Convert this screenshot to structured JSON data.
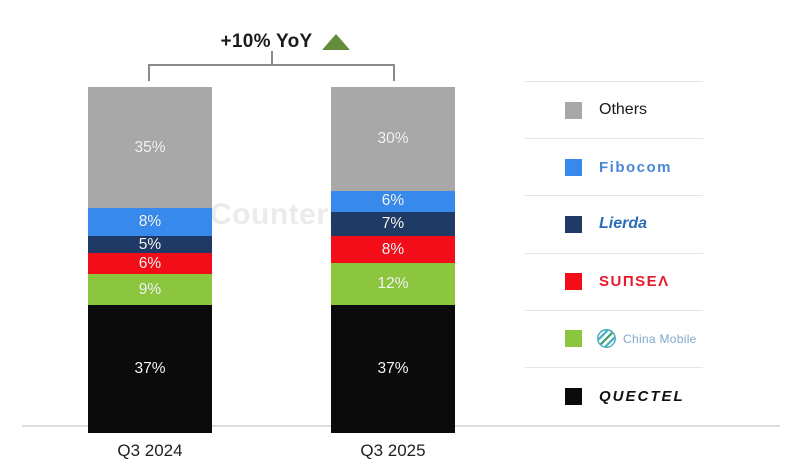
{
  "watermark": "Counterpoint",
  "chart_data": {
    "type": "bar",
    "subtype": "stacked-100-percent",
    "annotation": "+10% YoY",
    "annotation_arrow": "up",
    "annotation_arrow_color": "#648c3c",
    "categories": [
      "Q3 2024",
      "Q3 2025"
    ],
    "series": [
      {
        "name": "Others",
        "color": "#a8a8a8",
        "values": [
          35,
          30
        ]
      },
      {
        "name": "Fibocom",
        "color": "#3789ec",
        "values": [
          8,
          6
        ]
      },
      {
        "name": "Lierda",
        "color": "#1f3a64",
        "values": [
          5,
          7
        ]
      },
      {
        "name": "Sunsea",
        "color": "#f20d18",
        "values": [
          6,
          8
        ]
      },
      {
        "name": "China Mobile",
        "color": "#8cc63e",
        "values": [
          9,
          12
        ]
      },
      {
        "name": "Quectel",
        "color": "#0b0b0b",
        "values": [
          37,
          37
        ]
      }
    ],
    "value_suffix": "%",
    "ylim": [
      0,
      100
    ],
    "grid": false,
    "legend_position": "right"
  },
  "legend": {
    "items": [
      {
        "label": "Others",
        "display": "Others",
        "color": "#a8a8a8",
        "style": "plain",
        "icon": null
      },
      {
        "label": "Fibocom",
        "display": "Fibocom",
        "color": "#3789ec",
        "style": "fibocom",
        "icon": null
      },
      {
        "label": "Lierda",
        "display": "Lierda",
        "color": "#1f3a64",
        "style": "lierda",
        "icon": null
      },
      {
        "label": "Sunsea",
        "display": "SUΠSEΛ",
        "color": "#f20d18",
        "style": "sunsea",
        "icon": null
      },
      {
        "label": "China Mobile",
        "display": "China Mobile",
        "color": "#8cc63e",
        "style": "china-mobile",
        "icon": "china-mobile-globe-icon"
      },
      {
        "label": "Quectel",
        "display": "QUECTEL",
        "color": "#0b0b0b",
        "style": "quectel",
        "icon": null
      }
    ]
  }
}
